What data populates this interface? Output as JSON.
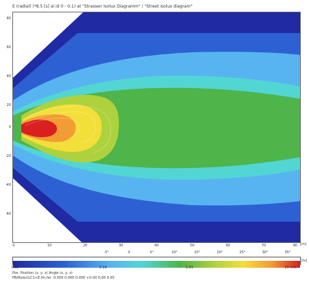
{
  "header": {
    "text": "E (radial) (*8.5 [s] al id 0 - 0.1) at \"Strassen Isolux Diagramm\" / \"Street isolux diagram\""
  },
  "plot": {
    "y_ticks": [
      "80",
      "60",
      "40",
      "20",
      "0",
      "-20",
      "-40",
      "-60"
    ],
    "x_ticks": [
      "0",
      "10",
      "20",
      "30",
      "40",
      "50",
      "60",
      "70",
      "80"
    ],
    "x_unit": "[m]",
    "y_unit": "[m]"
  },
  "colorbar": {
    "top_ticks": [
      "-5°",
      "0",
      "5°",
      "10°",
      "15°",
      "20°",
      "25°",
      "30°",
      "35°"
    ],
    "left_label": "0.00",
    "mid_label_1": "0.19",
    "mid_label_2": "1.65",
    "right_label": "15 mlx",
    "unit": "[lx]"
  },
  "footer": {
    "line1": "Pos.              Position (x, y, z)          Angle (x, y, z)",
    "line2": "PB/Rotor/LC1+E.fm.fer -0.000  0.000  0.000 +0.00  0.00  0.00"
  },
  "colors": {
    "deep_blue": "#1f2aa3",
    "blue": "#2d61d3",
    "light_blue": "#58b4f0",
    "cyan": "#52d6d4",
    "green": "#4fb44a",
    "yellow_green": "#aed23d",
    "yellow": "#f2df3a",
    "orange": "#f29c34",
    "red": "#d91f1f"
  }
}
